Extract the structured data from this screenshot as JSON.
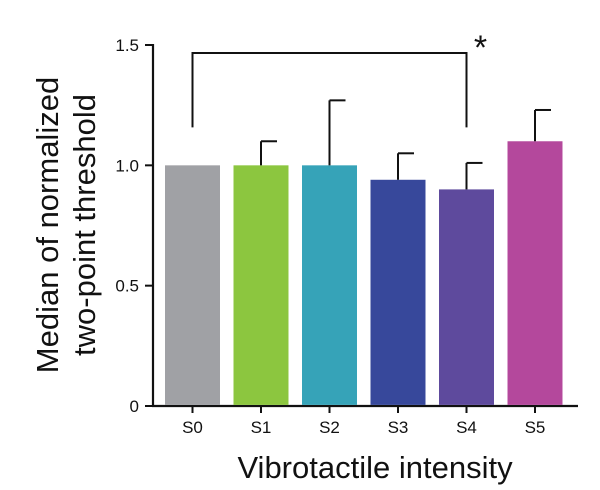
{
  "chart_data": {
    "type": "bar",
    "title": "",
    "xlabel": "Vibrotactile  intensity",
    "ylabel_lines": [
      "Median of normalized",
      "two-point threshold"
    ],
    "categories": [
      "S0",
      "S1",
      "S2",
      "S3",
      "S4",
      "S5"
    ],
    "values": [
      1.0,
      1.0,
      1.0,
      0.94,
      0.9,
      1.1
    ],
    "error_upper": [
      0.0,
      0.1,
      0.27,
      0.11,
      0.11,
      0.13
    ],
    "colors": [
      "#a0a1a5",
      "#8cc63f",
      "#36a3b8",
      "#37489b",
      "#5e4a9d",
      "#b4489c"
    ],
    "ylim": [
      0,
      1.5
    ],
    "yticks": [
      0,
      0.5,
      1.0,
      1.5
    ],
    "ytick_labels": [
      "0",
      "0.5",
      "1.0",
      "1.5"
    ],
    "grid": false,
    "significance": {
      "from": "S0",
      "to": "S4",
      "level": 1.5,
      "label": "*"
    }
  }
}
